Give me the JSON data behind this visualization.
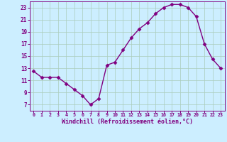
{
  "x": [
    0,
    1,
    2,
    3,
    4,
    5,
    6,
    7,
    8,
    9,
    10,
    11,
    12,
    13,
    14,
    15,
    16,
    17,
    18,
    19,
    20,
    21,
    22,
    23
  ],
  "y": [
    12.5,
    11.5,
    11.5,
    11.5,
    10.5,
    9.5,
    8.5,
    7.0,
    8.0,
    13.5,
    14.0,
    16.0,
    18.0,
    19.5,
    20.5,
    22.0,
    23.0,
    23.5,
    23.5,
    23.0,
    21.5,
    17.0,
    14.5,
    13.0
  ],
  "line_color": "#800080",
  "marker": "D",
  "marker_size": 2.5,
  "xlabel": "Windchill (Refroidissement éolien,°C)",
  "xlabel_color": "#800080",
  "bg_color": "#cceeff",
  "grid_color": "#aaccbb",
  "tick_color": "#800080",
  "label_color": "#800080",
  "ylim": [
    6,
    24
  ],
  "xlim_min": -0.5,
  "xlim_max": 23.5,
  "yticks": [
    7,
    9,
    11,
    13,
    15,
    17,
    19,
    21,
    23
  ],
  "xticks": [
    0,
    1,
    2,
    3,
    4,
    5,
    6,
    7,
    8,
    9,
    10,
    11,
    12,
    13,
    14,
    15,
    16,
    17,
    18,
    19,
    20,
    21,
    22,
    23
  ]
}
